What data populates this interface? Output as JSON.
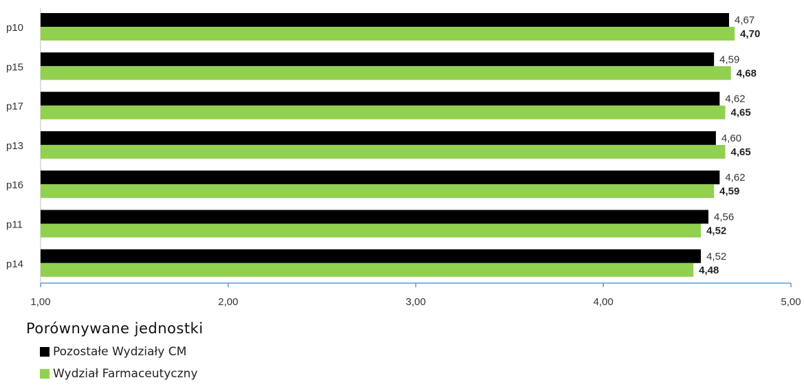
{
  "chart_data": {
    "type": "bar",
    "orientation": "horizontal",
    "categories": [
      "p10",
      "p15",
      "p17",
      "p13",
      "p16",
      "p11",
      "p14"
    ],
    "series": [
      {
        "name": "Pozostałe Wydziały CM",
        "color": "#000000",
        "values": [
          4.67,
          4.59,
          4.62,
          4.6,
          4.62,
          4.56,
          4.52
        ],
        "labels": [
          "4,67",
          "4,59",
          "4,62",
          "4,60",
          "4,62",
          "4,56",
          "4,52"
        ]
      },
      {
        "name": "Wydział Farmaceutyczny",
        "color": "#92d050",
        "values": [
          4.7,
          4.68,
          4.65,
          4.65,
          4.59,
          4.52,
          4.48
        ],
        "labels": [
          "4,70",
          "4,68",
          "4,65",
          "4,65",
          "4,59",
          "4,52",
          "4,48"
        ]
      }
    ],
    "xlim": [
      1.0,
      5.0
    ],
    "xticks": [
      "1,00",
      "2,00",
      "3,00",
      "4,00",
      "5,00"
    ],
    "grid": false,
    "axis_color": "#5b9bd5",
    "legend_position": "bottom-left"
  },
  "legend": {
    "title": "Porównywane jednostki",
    "items": [
      {
        "label": "Pozostałe Wydziały CM",
        "color": "#000000"
      },
      {
        "label": "Wydział Farmaceutyczny",
        "color": "#92d050"
      }
    ]
  }
}
